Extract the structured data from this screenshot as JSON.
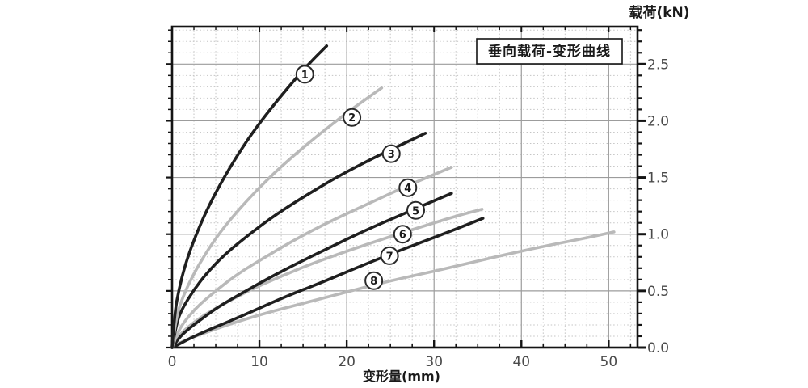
{
  "figure": {
    "background": "#ffffff"
  },
  "chart_data": {
    "type": "line",
    "title": "垂向载荷-变形曲线",
    "xlabel": "变形量(mm)",
    "ylabel": "载荷(kN)",
    "xlim": [
      0,
      53.3
    ],
    "ylim": [
      0,
      2.83
    ],
    "x_minor_step": 2.5,
    "y_minor_step": 0.1,
    "grid": {
      "major_solid": true,
      "minor_dotted": true
    },
    "legend_position": "none",
    "x_major_ticks": [
      {
        "value": 0,
        "label": "0"
      },
      {
        "value": 10,
        "label": "10"
      },
      {
        "value": 20,
        "label": "20"
      },
      {
        "value": 30,
        "label": "30"
      },
      {
        "value": 40,
        "label": "40"
      },
      {
        "value": 50,
        "label": "50"
      }
    ],
    "y_major_ticks": [
      {
        "value": 0.0,
        "label": "0.0"
      },
      {
        "value": 0.5,
        "label": "0.5"
      },
      {
        "value": 1.0,
        "label": "1.0"
      },
      {
        "value": 1.5,
        "label": "1.5"
      },
      {
        "value": 2.0,
        "label": "2.0"
      },
      {
        "value": 2.5,
        "label": "2.5"
      }
    ],
    "colors": {
      "dark": "#1f1f1f",
      "gray": "#b9b9b9",
      "grid_major": "#9c9c9c",
      "grid_minor": "#c4c4c4",
      "frame": "#141414",
      "tick_text": "#4a4a4a",
      "title_text": "#1a1a1a",
      "circle_stroke": "#2a2a2a",
      "circle_fill": "#ffffff"
    },
    "series": [
      {
        "id": 1,
        "label": "1",
        "color": "dark",
        "label_at": [
          15.2,
          2.41
        ],
        "points": [
          [
            0,
            0
          ],
          [
            0.3,
            0.31
          ],
          [
            0.8,
            0.52
          ],
          [
            1.5,
            0.73
          ],
          [
            2.5,
            0.95
          ],
          [
            4,
            1.22
          ],
          [
            6,
            1.51
          ],
          [
            8.5,
            1.82
          ],
          [
            11,
            2.08
          ],
          [
            14,
            2.36
          ],
          [
            16,
            2.53
          ],
          [
            17.7,
            2.66
          ]
        ]
      },
      {
        "id": 2,
        "label": "2",
        "color": "gray",
        "label_at": [
          20.6,
          2.03
        ],
        "points": [
          [
            0,
            0
          ],
          [
            0.4,
            0.24
          ],
          [
            1,
            0.4
          ],
          [
            2,
            0.58
          ],
          [
            3.5,
            0.79
          ],
          [
            5.5,
            1.02
          ],
          [
            8,
            1.25
          ],
          [
            11,
            1.49
          ],
          [
            14,
            1.7
          ],
          [
            17,
            1.89
          ],
          [
            20,
            2.07
          ],
          [
            22,
            2.18
          ],
          [
            24,
            2.29
          ]
        ]
      },
      {
        "id": 3,
        "label": "3",
        "color": "dark",
        "label_at": [
          25.1,
          1.71
        ],
        "points": [
          [
            0,
            0
          ],
          [
            0.5,
            0.22
          ],
          [
            1.2,
            0.35
          ],
          [
            2.5,
            0.51
          ],
          [
            4,
            0.66
          ],
          [
            6,
            0.82
          ],
          [
            9,
            1.01
          ],
          [
            12,
            1.18
          ],
          [
            15.5,
            1.35
          ],
          [
            19,
            1.51
          ],
          [
            23,
            1.67
          ],
          [
            26,
            1.78
          ],
          [
            29,
            1.89
          ]
        ]
      },
      {
        "id": 4,
        "label": "4",
        "color": "gray",
        "label_at": [
          27.0,
          1.41
        ],
        "points": [
          [
            0,
            0
          ],
          [
            0.6,
            0.13
          ],
          [
            1.5,
            0.24
          ],
          [
            3,
            0.37
          ],
          [
            5,
            0.5
          ],
          [
            7.5,
            0.65
          ],
          [
            10.5,
            0.79
          ],
          [
            14,
            0.95
          ],
          [
            18,
            1.11
          ],
          [
            22.5,
            1.27
          ],
          [
            27,
            1.43
          ],
          [
            32,
            1.59
          ]
        ]
      },
      {
        "id": 5,
        "label": "5",
        "color": "dark",
        "label_at": [
          27.9,
          1.21
        ],
        "points": [
          [
            0,
            0
          ],
          [
            0.7,
            0.08
          ],
          [
            1.8,
            0.16
          ],
          [
            3.5,
            0.26
          ],
          [
            5.5,
            0.37
          ],
          [
            8,
            0.48
          ],
          [
            11,
            0.61
          ],
          [
            14.5,
            0.75
          ],
          [
            18,
            0.88
          ],
          [
            22,
            1.03
          ],
          [
            26.5,
            1.18
          ],
          [
            32,
            1.36
          ]
        ]
      },
      {
        "id": 6,
        "label": "6",
        "color": "gray",
        "label_at": [
          26.4,
          1.0
        ],
        "points": [
          [
            0,
            0
          ],
          [
            0.7,
            0.1
          ],
          [
            1.8,
            0.18
          ],
          [
            3.5,
            0.28
          ],
          [
            6,
            0.39
          ],
          [
            9,
            0.51
          ],
          [
            12.5,
            0.63
          ],
          [
            16,
            0.74
          ],
          [
            20,
            0.85
          ],
          [
            25,
            0.98
          ],
          [
            30,
            1.1
          ],
          [
            33,
            1.17
          ],
          [
            35.5,
            1.22
          ]
        ]
      },
      {
        "id": 7,
        "label": "7",
        "color": "dark",
        "label_at": [
          24.9,
          0.81
        ],
        "points": [
          [
            0,
            0
          ],
          [
            0.8,
            0.03
          ],
          [
            2,
            0.08
          ],
          [
            4,
            0.15
          ],
          [
            6.5,
            0.23
          ],
          [
            9.5,
            0.33
          ],
          [
            13,
            0.45
          ],
          [
            17,
            0.57
          ],
          [
            21,
            0.7
          ],
          [
            25.5,
            0.84
          ],
          [
            30,
            0.97
          ],
          [
            33,
            1.06
          ],
          [
            35.6,
            1.14
          ]
        ]
      },
      {
        "id": 8,
        "label": "8",
        "color": "gray",
        "label_at": [
          23.1,
          0.59
        ],
        "points": [
          [
            0,
            0
          ],
          [
            0.8,
            0.04
          ],
          [
            2,
            0.08
          ],
          [
            4.5,
            0.15
          ],
          [
            7.5,
            0.23
          ],
          [
            11,
            0.31
          ],
          [
            15,
            0.39
          ],
          [
            20,
            0.49
          ],
          [
            25,
            0.59
          ],
          [
            31,
            0.69
          ],
          [
            37,
            0.8
          ],
          [
            43,
            0.9
          ],
          [
            47,
            0.96
          ],
          [
            50.6,
            1.02
          ]
        ]
      }
    ]
  }
}
